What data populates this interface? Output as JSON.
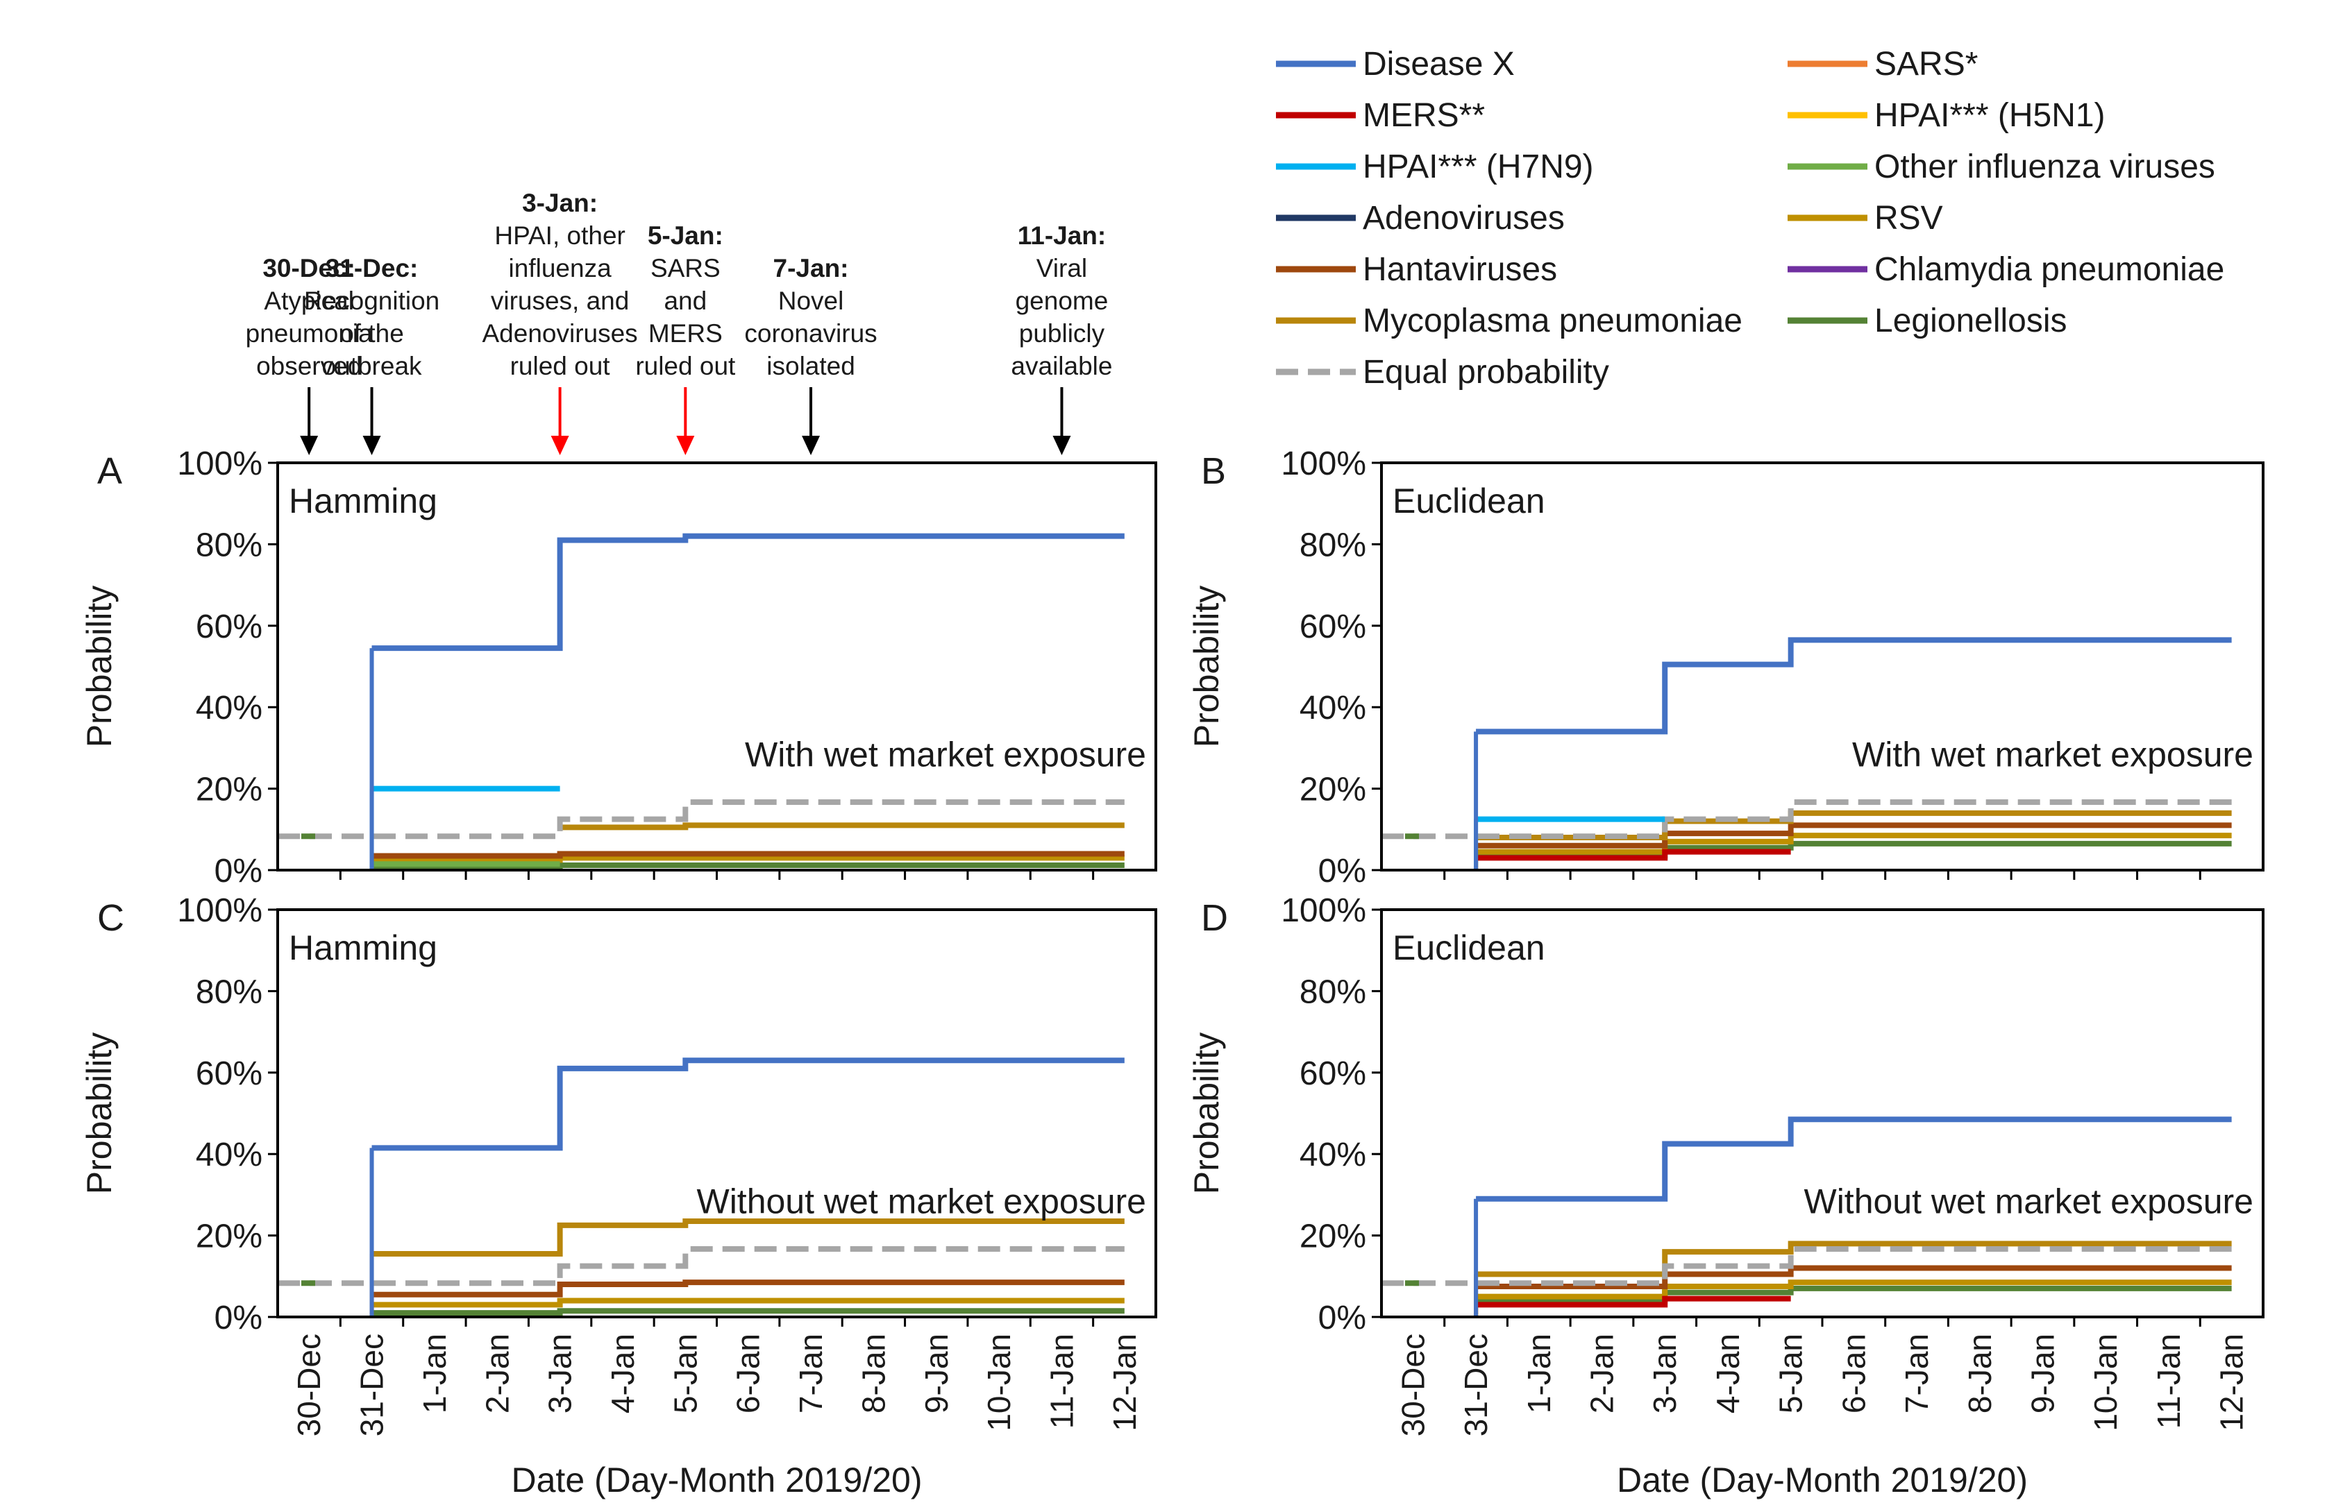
{
  "figure": {
    "legend": [
      {
        "name": "Disease X",
        "color": "#4472C4",
        "dash": false
      },
      {
        "name": "SARS*",
        "color": "#ED7D31",
        "dash": false
      },
      {
        "name": "MERS**",
        "color": "#C00000",
        "dash": false
      },
      {
        "name": "HPAI*** (H5N1)",
        "color": "#FFC000",
        "dash": false
      },
      {
        "name": "HPAI*** (H7N9)",
        "color": "#00B0F0",
        "dash": false
      },
      {
        "name": "Other influenza viruses",
        "color": "#70AD47",
        "dash": false
      },
      {
        "name": "Adenoviruses",
        "color": "#203864",
        "dash": false
      },
      {
        "name": "RSV",
        "color": "#BF9000",
        "dash": false
      },
      {
        "name": "Hantaviruses",
        "color": "#9E480E",
        "dash": false
      },
      {
        "name": "Chlamydia pneumoniae",
        "color": "#7030A0",
        "dash": false
      },
      {
        "name": "Mycoplasma pneumoniae",
        "color": "#B8860B",
        "dash": false
      },
      {
        "name": "Legionellosis",
        "color": "#548235",
        "dash": false
      },
      {
        "name": "Equal probability",
        "color": "#A6A6A6",
        "dash": true
      }
    ],
    "events": [
      {
        "date_index": 0,
        "head": "30-Dec:",
        "lines": [
          "Atypical",
          "pneumonia",
          "observed"
        ],
        "arrow_color": "#000000"
      },
      {
        "date_index": 1,
        "head": "31-Dec:",
        "lines": [
          "Recognition",
          "of the",
          "outbreak"
        ],
        "arrow_color": "#000000"
      },
      {
        "date_index": 4,
        "head": "3-Jan:",
        "lines": [
          "HPAI, other",
          "influenza",
          "viruses, and",
          "Adenoviruses",
          "ruled out"
        ],
        "arrow_color": "#FF0000"
      },
      {
        "date_index": 6,
        "head": "5-Jan:",
        "lines": [
          "SARS",
          "and",
          "MERS",
          "ruled out"
        ],
        "arrow_color": "#FF0000"
      },
      {
        "date_index": 8,
        "head": "7-Jan:",
        "lines": [
          "Novel",
          "coronavirus",
          "isolated"
        ],
        "arrow_color": "#000000"
      },
      {
        "date_index": 12,
        "head": "11-Jan:",
        "lines": [
          "Viral",
          "genome",
          "publicly",
          "available"
        ],
        "arrow_color": "#000000"
      }
    ]
  },
  "chart_data": [
    {
      "type": "line",
      "panel": "A",
      "title": "Hamming",
      "annotation": "With wet market exposure",
      "ylabel": "Probability",
      "xlabel": "",
      "ylim": [
        0,
        100
      ],
      "yticks": [
        "0%",
        "20%",
        "40%",
        "60%",
        "80%",
        "100%"
      ],
      "categories": [
        "30-Dec",
        "31-Dec",
        "1-Jan",
        "2-Jan",
        "3-Jan",
        "4-Jan",
        "5-Jan",
        "6-Jan",
        "7-Jan",
        "8-Jan",
        "9-Jan",
        "10-Jan",
        "11-Jan",
        "12-Jan"
      ],
      "series": [
        {
          "name": "Equal probability",
          "steps": [
            [
              -0.5,
              8.3
            ],
            [
              1,
              8.3
            ],
            [
              4,
              12.5
            ],
            [
              6,
              16.7
            ]
          ]
        },
        {
          "name": "Disease X",
          "steps": [
            [
              1,
              54.5
            ],
            [
              4,
              81
            ],
            [
              6,
              82
            ]
          ]
        },
        {
          "name": "HPAI*** (H7N9)",
          "steps": [
            [
              1,
              20
            ],
            [
              4,
              null
            ]
          ]
        },
        {
          "name": "Mycoplasma pneumoniae",
          "steps": [
            [
              4,
              10.5
            ],
            [
              6,
              11
            ]
          ]
        },
        {
          "name": "Hantaviruses",
          "steps": [
            [
              1,
              3.5
            ],
            [
              4,
              4
            ],
            [
              6,
              4
            ]
          ]
        },
        {
          "name": "RSV",
          "steps": [
            [
              1,
              2.5
            ],
            [
              4,
              3
            ],
            [
              6,
              3
            ]
          ]
        },
        {
          "name": "Legionellosis",
          "steps": [
            [
              1,
              1
            ],
            [
              4,
              1.2
            ],
            [
              6,
              1.2
            ]
          ]
        },
        {
          "name": "Other influenza viruses",
          "steps": [
            [
              1,
              1.5
            ],
            [
              4,
              null
            ]
          ]
        }
      ]
    },
    {
      "type": "line",
      "panel": "B",
      "title": "Euclidean",
      "annotation": "With wet market exposure",
      "ylabel": "Probability",
      "xlabel": "",
      "ylim": [
        0,
        100
      ],
      "yticks": [
        "0%",
        "20%",
        "40%",
        "60%",
        "80%",
        "100%"
      ],
      "categories": [
        "30-Dec",
        "31-Dec",
        "1-Jan",
        "2-Jan",
        "3-Jan",
        "4-Jan",
        "5-Jan",
        "6-Jan",
        "7-Jan",
        "8-Jan",
        "9-Jan",
        "10-Jan",
        "11-Jan",
        "12-Jan"
      ],
      "series": [
        {
          "name": "Equal probability",
          "steps": [
            [
              -0.5,
              8.3
            ],
            [
              1,
              8.3
            ],
            [
              4,
              12.5
            ],
            [
              6,
              16.7
            ]
          ]
        },
        {
          "name": "Disease X",
          "steps": [
            [
              1,
              34
            ],
            [
              4,
              50.5
            ],
            [
              6,
              56.5
            ]
          ]
        },
        {
          "name": "HPAI*** (H7N9)",
          "steps": [
            [
              1,
              12.5
            ],
            [
              4,
              null
            ]
          ]
        },
        {
          "name": "Mycoplasma pneumoniae",
          "steps": [
            [
              1,
              8
            ],
            [
              4,
              12
            ],
            [
              6,
              14
            ]
          ]
        },
        {
          "name": "Hantaviruses",
          "steps": [
            [
              1,
              6
            ],
            [
              4,
              9
            ],
            [
              6,
              11
            ]
          ]
        },
        {
          "name": "MERS**",
          "steps": [
            [
              1,
              3
            ],
            [
              4,
              4.5
            ],
            [
              6,
              null
            ]
          ]
        },
        {
          "name": "RSV",
          "steps": [
            [
              1,
              4.5
            ],
            [
              4,
              7
            ],
            [
              6,
              8.5
            ]
          ]
        },
        {
          "name": "Legionellosis",
          "steps": [
            [
              1,
              3.5
            ],
            [
              4,
              5.5
            ],
            [
              6,
              6.5
            ]
          ]
        }
      ]
    },
    {
      "type": "line",
      "panel": "C",
      "title": "Hamming",
      "annotation": "Without wet market exposure",
      "ylabel": "Probability",
      "xlabel": "Date (Day-Month 2019/20)",
      "ylim": [
        0,
        100
      ],
      "yticks": [
        "0%",
        "20%",
        "40%",
        "60%",
        "80%",
        "100%"
      ],
      "categories": [
        "30-Dec",
        "31-Dec",
        "1-Jan",
        "2-Jan",
        "3-Jan",
        "4-Jan",
        "5-Jan",
        "6-Jan",
        "7-Jan",
        "8-Jan",
        "9-Jan",
        "10-Jan",
        "11-Jan",
        "12-Jan"
      ],
      "series": [
        {
          "name": "Equal probability",
          "steps": [
            [
              -0.5,
              8.3
            ],
            [
              1,
              8.3
            ],
            [
              4,
              12.5
            ],
            [
              6,
              16.7
            ]
          ]
        },
        {
          "name": "Disease X",
          "steps": [
            [
              1,
              41.5
            ],
            [
              4,
              61
            ],
            [
              6,
              63
            ]
          ]
        },
        {
          "name": "Mycoplasma pneumoniae",
          "steps": [
            [
              1,
              15.5
            ],
            [
              4,
              22.5
            ],
            [
              6,
              23.5
            ]
          ]
        },
        {
          "name": "Hantaviruses",
          "steps": [
            [
              1,
              5.5
            ],
            [
              4,
              8
            ],
            [
              6,
              8.5
            ]
          ]
        },
        {
          "name": "RSV",
          "steps": [
            [
              1,
              3
            ],
            [
              4,
              4
            ],
            [
              6,
              4
            ]
          ]
        },
        {
          "name": "Legionellosis",
          "steps": [
            [
              1,
              1
            ],
            [
              4,
              1.5
            ],
            [
              6,
              1.5
            ]
          ]
        }
      ]
    },
    {
      "type": "line",
      "panel": "D",
      "title": "Euclidean",
      "annotation": "Without wet market exposure",
      "ylabel": "Probability",
      "xlabel": "Date (Day-Month 2019/20)",
      "ylim": [
        0,
        100
      ],
      "yticks": [
        "0%",
        "20%",
        "40%",
        "60%",
        "80%",
        "100%"
      ],
      "categories": [
        "30-Dec",
        "31-Dec",
        "1-Jan",
        "2-Jan",
        "3-Jan",
        "4-Jan",
        "5-Jan",
        "6-Jan",
        "7-Jan",
        "8-Jan",
        "9-Jan",
        "10-Jan",
        "11-Jan",
        "12-Jan"
      ],
      "series": [
        {
          "name": "Equal probability",
          "steps": [
            [
              -0.5,
              8.3
            ],
            [
              1,
              8.3
            ],
            [
              4,
              12.5
            ],
            [
              6,
              16.7
            ]
          ]
        },
        {
          "name": "Disease X",
          "steps": [
            [
              1,
              29
            ],
            [
              4,
              42.5
            ],
            [
              6,
              48.5
            ]
          ]
        },
        {
          "name": "Mycoplasma pneumoniae",
          "steps": [
            [
              1,
              10.5
            ],
            [
              4,
              16
            ],
            [
              6,
              18
            ]
          ]
        },
        {
          "name": "Hantaviruses",
          "steps": [
            [
              1,
              7.5
            ],
            [
              4,
              10.5
            ],
            [
              6,
              12
            ]
          ]
        },
        {
          "name": "MERS**",
          "steps": [
            [
              1,
              3
            ],
            [
              4,
              4.5
            ],
            [
              6,
              null
            ]
          ]
        },
        {
          "name": "RSV",
          "steps": [
            [
              1,
              5
            ],
            [
              4,
              7.5
            ],
            [
              6,
              8.5
            ]
          ]
        },
        {
          "name": "Legionellosis",
          "steps": [
            [
              1,
              4
            ],
            [
              4,
              6
            ],
            [
              6,
              7
            ]
          ]
        }
      ]
    }
  ]
}
